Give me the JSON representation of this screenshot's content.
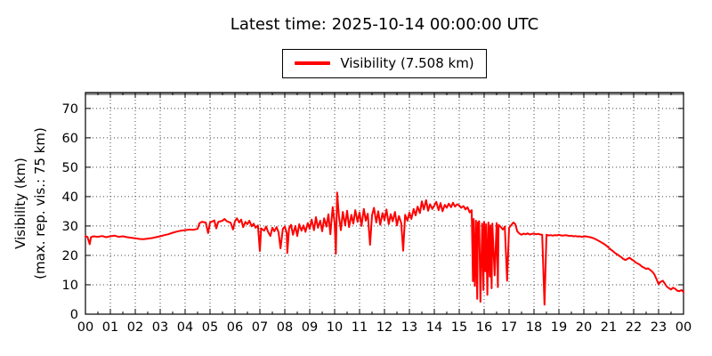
{
  "header": {
    "title": "Latest time: 2025-10-14 00:00:00 UTC"
  },
  "legend": {
    "label": "Visibility (7.508 km)",
    "line_color": "#ff0000"
  },
  "chart_data": {
    "type": "line",
    "title": "Latest time: 2025-10-14 00:00:00 UTC",
    "xlabel": "",
    "ylabel_line1": "Visibility (km)",
    "ylabel_line2": "(max. rep. vis.: 75 km)",
    "x_unit": "hour of day (UTC)",
    "x_tick_labels": [
      "00",
      "01",
      "02",
      "03",
      "04",
      "05",
      "06",
      "07",
      "08",
      "09",
      "10",
      "11",
      "12",
      "13",
      "14",
      "15",
      "16",
      "17",
      "18",
      "19",
      "20",
      "21",
      "22",
      "23",
      "00"
    ],
    "y_ticks": [
      0,
      10,
      20,
      30,
      40,
      50,
      60,
      70
    ],
    "xlim_hours": [
      0,
      24
    ],
    "ylim": [
      0,
      75.4
    ],
    "grid": true,
    "legend_position": "top-center-outside",
    "reference_line": {
      "value_km": 75,
      "color": "#909090",
      "meaning": "max. rep. vis.: 75 km"
    },
    "latest_value_km": 7.508,
    "line_color": "#ff0000",
    "series": [
      {
        "name": "Visibility (7.508 km)",
        "color": "#ff0000",
        "points": [
          [
            0.0,
            26.5
          ],
          [
            0.08,
            26.3
          ],
          [
            0.17,
            23.8
          ],
          [
            0.22,
            26.2
          ],
          [
            0.33,
            26.5
          ],
          [
            0.5,
            26.3
          ],
          [
            0.67,
            26.6
          ],
          [
            0.83,
            26.2
          ],
          [
            1.0,
            26.5
          ],
          [
            1.17,
            26.7
          ],
          [
            1.33,
            26.3
          ],
          [
            1.5,
            26.5
          ],
          [
            1.67,
            26.2
          ],
          [
            1.83,
            26.0
          ],
          [
            2.0,
            25.8
          ],
          [
            2.17,
            25.6
          ],
          [
            2.33,
            25.5
          ],
          [
            2.5,
            25.7
          ],
          [
            2.67,
            25.9
          ],
          [
            2.83,
            26.2
          ],
          [
            3.0,
            26.5
          ],
          [
            3.17,
            26.9
          ],
          [
            3.33,
            27.2
          ],
          [
            3.5,
            27.7
          ],
          [
            3.67,
            28.1
          ],
          [
            3.83,
            28.4
          ],
          [
            4.0,
            28.6
          ],
          [
            4.17,
            28.8
          ],
          [
            4.33,
            28.7
          ],
          [
            4.5,
            29.0
          ],
          [
            4.58,
            31.0
          ],
          [
            4.67,
            31.4
          ],
          [
            4.83,
            31.2
          ],
          [
            4.92,
            27.6
          ],
          [
            5.0,
            31.2
          ],
          [
            5.17,
            31.9
          ],
          [
            5.25,
            29.2
          ],
          [
            5.33,
            31.4
          ],
          [
            5.5,
            31.8
          ],
          [
            5.58,
            32.4
          ],
          [
            5.67,
            31.6
          ],
          [
            5.83,
            31.1
          ],
          [
            5.92,
            28.8
          ],
          [
            6.0,
            31.6
          ],
          [
            6.08,
            32.6
          ],
          [
            6.17,
            31.2
          ],
          [
            6.25,
            32.2
          ],
          [
            6.33,
            29.6
          ],
          [
            6.42,
            31.4
          ],
          [
            6.5,
            30.6
          ],
          [
            6.58,
            31.8
          ],
          [
            6.67,
            29.9
          ],
          [
            6.75,
            30.8
          ],
          [
            6.83,
            29.4
          ],
          [
            6.92,
            30.2
          ],
          [
            7.0,
            21.5
          ],
          [
            7.05,
            29.2
          ],
          [
            7.17,
            28.4
          ],
          [
            7.25,
            29.8
          ],
          [
            7.33,
            28.0
          ],
          [
            7.42,
            26.6
          ],
          [
            7.5,
            29.4
          ],
          [
            7.58,
            28.2
          ],
          [
            7.67,
            29.6
          ],
          [
            7.75,
            27.8
          ],
          [
            7.83,
            22.4
          ],
          [
            7.92,
            29.0
          ],
          [
            8.0,
            29.8
          ],
          [
            8.08,
            27.6
          ],
          [
            8.1,
            20.8
          ],
          [
            8.17,
            29.2
          ],
          [
            8.25,
            30.4
          ],
          [
            8.33,
            27.0
          ],
          [
            8.42,
            30.0
          ],
          [
            8.5,
            26.6
          ],
          [
            8.58,
            30.6
          ],
          [
            8.67,
            28.4
          ],
          [
            8.75,
            30.2
          ],
          [
            8.83,
            28.0
          ],
          [
            8.92,
            31.0
          ],
          [
            9.0,
            29.0
          ],
          [
            9.08,
            32.2
          ],
          [
            9.17,
            28.6
          ],
          [
            9.25,
            33.0
          ],
          [
            9.33,
            29.4
          ],
          [
            9.42,
            31.8
          ],
          [
            9.5,
            28.2
          ],
          [
            9.58,
            32.6
          ],
          [
            9.67,
            29.8
          ],
          [
            9.75,
            34.0
          ],
          [
            9.83,
            27.2
          ],
          [
            9.92,
            36.4
          ],
          [
            10.0,
            31.0
          ],
          [
            10.05,
            20.6
          ],
          [
            10.1,
            41.4
          ],
          [
            10.17,
            33.4
          ],
          [
            10.25,
            28.6
          ],
          [
            10.33,
            34.8
          ],
          [
            10.42,
            30.2
          ],
          [
            10.5,
            35.2
          ],
          [
            10.58,
            29.6
          ],
          [
            10.67,
            33.8
          ],
          [
            10.75,
            30.8
          ],
          [
            10.83,
            35.4
          ],
          [
            10.92,
            31.4
          ],
          [
            11.0,
            34.6
          ],
          [
            11.08,
            30.0
          ],
          [
            11.17,
            35.8
          ],
          [
            11.25,
            31.8
          ],
          [
            11.33,
            34.2
          ],
          [
            11.42,
            23.6
          ],
          [
            11.5,
            33.6
          ],
          [
            11.58,
            36.2
          ],
          [
            11.67,
            31.2
          ],
          [
            11.75,
            35.0
          ],
          [
            11.83,
            30.4
          ],
          [
            11.92,
            34.4
          ],
          [
            12.0,
            32.0
          ],
          [
            12.08,
            35.6
          ],
          [
            12.17,
            30.6
          ],
          [
            12.25,
            34.0
          ],
          [
            12.33,
            31.6
          ],
          [
            12.42,
            34.8
          ],
          [
            12.5,
            30.2
          ],
          [
            12.58,
            33.4
          ],
          [
            12.67,
            31.0
          ],
          [
            12.75,
            21.6
          ],
          [
            12.83,
            33.8
          ],
          [
            12.92,
            31.8
          ],
          [
            13.0,
            34.6
          ],
          [
            13.08,
            32.4
          ],
          [
            13.17,
            35.8
          ],
          [
            13.25,
            33.6
          ],
          [
            13.33,
            36.6
          ],
          [
            13.42,
            34.4
          ],
          [
            13.5,
            38.4
          ],
          [
            13.58,
            35.6
          ],
          [
            13.67,
            38.8
          ],
          [
            13.75,
            35.2
          ],
          [
            13.83,
            37.4
          ],
          [
            13.92,
            35.8
          ],
          [
            14.0,
            37.0
          ],
          [
            14.08,
            38.2
          ],
          [
            14.17,
            35.4
          ],
          [
            14.25,
            37.8
          ],
          [
            14.33,
            35.0
          ],
          [
            14.42,
            37.2
          ],
          [
            14.5,
            36.2
          ],
          [
            14.58,
            37.6
          ],
          [
            14.67,
            36.4
          ],
          [
            14.75,
            37.9
          ],
          [
            14.83,
            36.6
          ],
          [
            14.92,
            37.4
          ],
          [
            15.0,
            37.0
          ],
          [
            15.08,
            36.2
          ],
          [
            15.17,
            36.8
          ],
          [
            15.25,
            35.6
          ],
          [
            15.33,
            36.4
          ],
          [
            15.42,
            34.6
          ],
          [
            15.5,
            35.4
          ],
          [
            15.55,
            11.2
          ],
          [
            15.58,
            32.4
          ],
          [
            15.63,
            9.6
          ],
          [
            15.67,
            31.8
          ],
          [
            15.72,
            5.2
          ],
          [
            15.75,
            31.2
          ],
          [
            15.8,
            31.6
          ],
          [
            15.85,
            4.2
          ],
          [
            15.92,
            30.8
          ],
          [
            15.97,
            8.2
          ],
          [
            16.0,
            31.4
          ],
          [
            16.05,
            14.6
          ],
          [
            16.08,
            30.6
          ],
          [
            16.13,
            6.6
          ],
          [
            16.17,
            31.2
          ],
          [
            16.22,
            12.8
          ],
          [
            16.25,
            30.2
          ],
          [
            16.3,
            8.8
          ],
          [
            16.33,
            30.8
          ],
          [
            16.42,
            13.2
          ],
          [
            16.5,
            31.0
          ],
          [
            16.55,
            9.2
          ],
          [
            16.58,
            30.4
          ],
          [
            16.67,
            29.6
          ],
          [
            16.75,
            28.8
          ],
          [
            16.83,
            29.8
          ],
          [
            16.92,
            11.4
          ],
          [
            17.0,
            29.4
          ],
          [
            17.08,
            30.2
          ],
          [
            17.17,
            31.2
          ],
          [
            17.25,
            30.6
          ],
          [
            17.33,
            28.2
          ],
          [
            17.42,
            27.4
          ],
          [
            17.5,
            27.0
          ],
          [
            17.58,
            27.4
          ],
          [
            17.67,
            27.2
          ],
          [
            17.75,
            27.5
          ],
          [
            17.83,
            27.1
          ],
          [
            17.92,
            27.3
          ],
          [
            18.0,
            27.4
          ],
          [
            18.08,
            27.2
          ],
          [
            18.17,
            27.3
          ],
          [
            18.25,
            27.1
          ],
          [
            18.33,
            27.0
          ],
          [
            18.42,
            3.2
          ],
          [
            18.5,
            27.0
          ],
          [
            18.58,
            26.8
          ],
          [
            18.67,
            26.9
          ],
          [
            18.75,
            26.7
          ],
          [
            18.83,
            26.9
          ],
          [
            18.92,
            26.8
          ],
          [
            19.0,
            27.0
          ],
          [
            19.08,
            26.8
          ],
          [
            19.17,
            26.7
          ],
          [
            19.25,
            26.9
          ],
          [
            19.33,
            26.8
          ],
          [
            19.42,
            26.6
          ],
          [
            19.5,
            26.7
          ],
          [
            19.58,
            26.5
          ],
          [
            19.67,
            26.6
          ],
          [
            19.75,
            26.4
          ],
          [
            19.83,
            26.5
          ],
          [
            19.92,
            26.3
          ],
          [
            20.0,
            26.4
          ],
          [
            20.08,
            26.5
          ],
          [
            20.17,
            26.3
          ],
          [
            20.25,
            26.2
          ],
          [
            20.33,
            26.0
          ],
          [
            20.42,
            25.7
          ],
          [
            20.5,
            25.4
          ],
          [
            20.58,
            25.0
          ],
          [
            20.67,
            24.6
          ],
          [
            20.75,
            24.2
          ],
          [
            20.83,
            23.8
          ],
          [
            20.92,
            23.2
          ],
          [
            21.0,
            22.6
          ],
          [
            21.08,
            22.0
          ],
          [
            21.17,
            21.4
          ],
          [
            21.25,
            20.8
          ],
          [
            21.33,
            20.4
          ],
          [
            21.42,
            19.8
          ],
          [
            21.5,
            19.4
          ],
          [
            21.58,
            18.8
          ],
          [
            21.67,
            18.4
          ],
          [
            21.75,
            18.8
          ],
          [
            21.83,
            19.2
          ],
          [
            21.92,
            18.6
          ],
          [
            22.0,
            18.2
          ],
          [
            22.08,
            17.6
          ],
          [
            22.17,
            17.2
          ],
          [
            22.25,
            16.8
          ],
          [
            22.33,
            16.2
          ],
          [
            22.42,
            15.8
          ],
          [
            22.5,
            15.4
          ],
          [
            22.58,
            15.6
          ],
          [
            22.67,
            15.0
          ],
          [
            22.75,
            14.4
          ],
          [
            22.83,
            13.6
          ],
          [
            22.92,
            11.8
          ],
          [
            23.0,
            10.2
          ],
          [
            23.08,
            11.0
          ],
          [
            23.17,
            11.4
          ],
          [
            23.25,
            10.4
          ],
          [
            23.33,
            9.4
          ],
          [
            23.42,
            8.8
          ],
          [
            23.5,
            8.4
          ],
          [
            23.58,
            9.0
          ],
          [
            23.67,
            8.6
          ],
          [
            23.75,
            8.0
          ],
          [
            23.83,
            7.8
          ],
          [
            23.92,
            8.2
          ],
          [
            24.0,
            7.508
          ]
        ]
      }
    ]
  }
}
